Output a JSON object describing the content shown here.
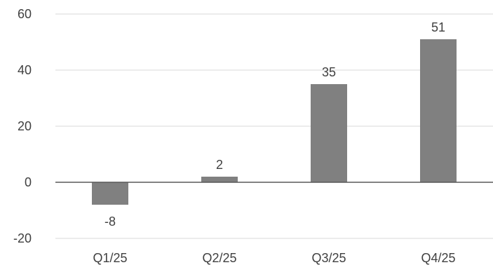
{
  "chart_data": {
    "type": "bar",
    "categories": [
      "Q1/25",
      "Q2/25",
      "Q3/25",
      "Q4/25"
    ],
    "values": [
      -8,
      2,
      35,
      51
    ],
    "data_labels": [
      "-8",
      "2",
      "35",
      "51"
    ],
    "ylim": [
      -20,
      60
    ],
    "yticks": [
      -20,
      0,
      20,
      40,
      60
    ],
    "ytick_labels": [
      "-20",
      "0",
      "20",
      "40",
      "60"
    ],
    "grid": true,
    "legend": "none",
    "bar_color": "#808080",
    "grid_color": "#d9d9d9",
    "axis_color": "#595959",
    "text_color": "#404040"
  }
}
